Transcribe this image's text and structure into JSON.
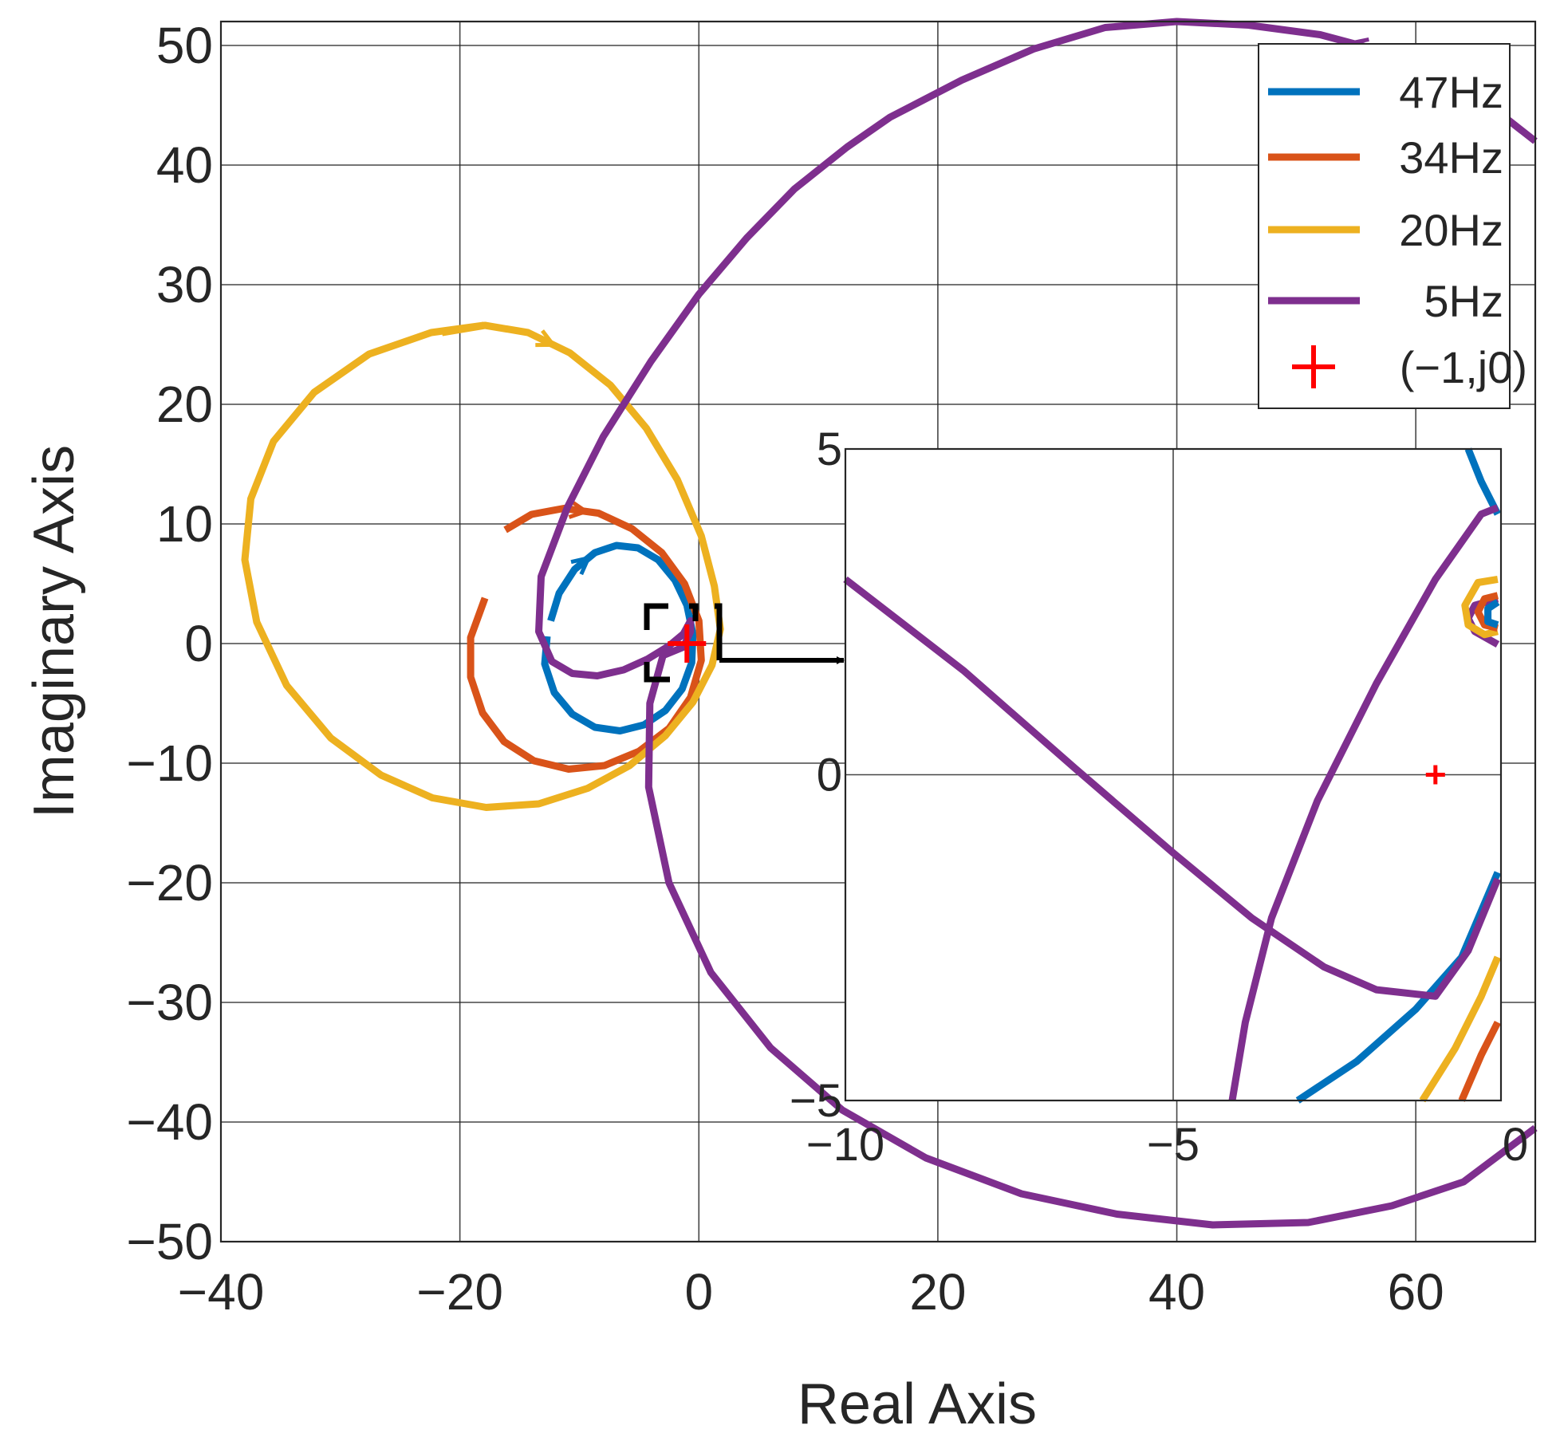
{
  "chart_data": {
    "type": "line",
    "title": "",
    "xlabel": "Real Axis",
    "ylabel": "Imaginary Axis",
    "xlim": [
      -40,
      70
    ],
    "ylim": [
      -50,
      52
    ],
    "xticks": [
      -40,
      -20,
      0,
      20,
      40,
      60
    ],
    "yticks": [
      -50,
      -40,
      -30,
      -20,
      -10,
      0,
      10,
      20,
      30,
      40,
      50
    ],
    "grid": true,
    "legend_position": "top-right",
    "series": [
      {
        "name": "47Hz",
        "color": "#0072BD",
        "x": [
          -12.4,
          -11.7,
          -10.4,
          -8.7,
          -6.9,
          -5.1,
          -3.4,
          -2.0,
          -1.0,
          -0.5,
          -0.6,
          -1.4,
          -2.8,
          -4.6,
          -6.6,
          -8.7,
          -10.6,
          -12.1,
          -12.9,
          -12.7
        ],
        "y": [
          1.9,
          4.2,
          6.2,
          7.6,
          8.2,
          8.0,
          7.0,
          5.3,
          3.2,
          0.8,
          -1.6,
          -3.8,
          -5.6,
          -6.8,
          -7.3,
          -7.0,
          -5.9,
          -4.1,
          -1.7,
          0.6
        ]
      },
      {
        "name": "34Hz",
        "color": "#D95319",
        "x": [
          -16.2,
          -14.0,
          -11.3,
          -8.4,
          -5.6,
          -3.1,
          -1.2,
          0.0,
          0.2,
          -0.7,
          -2.5,
          -5.0,
          -7.9,
          -10.9,
          -13.8,
          -16.3,
          -18.1,
          -19.1,
          -19.1,
          -17.9
        ],
        "y": [
          9.5,
          10.8,
          11.3,
          10.9,
          9.6,
          7.6,
          5.0,
          1.9,
          -1.4,
          -4.5,
          -7.1,
          -9.0,
          -10.2,
          -10.5,
          -9.8,
          -8.2,
          -5.8,
          -2.8,
          0.5,
          3.8
        ]
      },
      {
        "name": "20Hz",
        "color": "#EDB120",
        "x": [
          -21.5,
          -17.9,
          -14.3,
          -10.8,
          -7.4,
          -4.4,
          -1.8,
          0.2,
          1.3,
          1.8,
          1.1,
          -0.5,
          -2.8,
          -5.8,
          -9.3,
          -13.4,
          -17.8,
          -22.3,
          -26.6,
          -30.8,
          -34.5,
          -37.0,
          -38.0,
          -37.5,
          -35.6,
          -32.2,
          -27.6,
          -22.4,
          -18.0
        ],
        "y": [
          26.0,
          26.6,
          26.0,
          24.3,
          21.6,
          18.0,
          13.7,
          9.0,
          4.8,
          1.2,
          -1.8,
          -4.9,
          -7.7,
          -10.2,
          -12.1,
          -13.4,
          -13.7,
          -12.9,
          -11.0,
          -7.9,
          -3.5,
          1.8,
          7.0,
          12.1,
          16.9,
          21.0,
          24.2,
          26.0,
          26.6
        ]
      },
      {
        "name": "5Hz",
        "color": "#7E2F8E",
        "x": [
          70,
          64,
          58,
          52,
          46,
          40,
          34,
          28,
          22,
          16,
          12.4,
          8,
          4,
          0,
          -4,
          -8,
          -11,
          -13.2,
          -13.4,
          -12.3,
          -10.6,
          -8.5,
          -6.3,
          -4.3,
          -2.5,
          -1.3,
          -0.7,
          -0.7,
          -1.3,
          -3.0,
          -4.1,
          -4.2,
          -2.5,
          1,
          6,
          12,
          19,
          27,
          35,
          43,
          51,
          58,
          64,
          70
        ],
        "y": [
          42.0,
          46.7,
          49.3,
          50.9,
          51.7,
          52.0,
          51.5,
          49.7,
          47.1,
          44.0,
          41.5,
          38.0,
          33.9,
          29.2,
          23.6,
          17.3,
          11.4,
          5.6,
          1.0,
          -1.5,
          -2.5,
          -2.7,
          -2.2,
          -1.3,
          -0.2,
          0.8,
          1.9,
          1.0,
          -0.3,
          -1.0,
          -5.0,
          -12.0,
          -20.0,
          -27.5,
          -33.8,
          -39.0,
          -43.0,
          -46.0,
          -47.7,
          -48.6,
          -48.4,
          -47.0,
          -45.0,
          -40.5
        ]
      }
    ],
    "marker": {
      "name": "(−1,j0)",
      "x": -1,
      "y": 0,
      "color": "#FF0000"
    },
    "inset": {
      "xlim": [
        -10,
        0
      ],
      "ylim": [
        -5,
        5
      ],
      "xticks": [
        -10,
        -5,
        0
      ],
      "yticks": [
        -5,
        0,
        5
      ],
      "tick_labels_x": [
        "−10",
        "−5",
        "0"
      ],
      "tick_labels_y": [
        "−5",
        "0",
        "5"
      ],
      "series": [
        {
          "name": "47Hz",
          "color": "#0072BD",
          "x": [
            -0.5,
            -0.3,
            -0.05
          ],
          "y": [
            5.0,
            4.5,
            4.0
          ]
        },
        {
          "name": "47Hz",
          "color": "#0072BD",
          "x": [
            -3.1,
            -2.2,
            -1.3,
            -0.6,
            -0.05
          ],
          "y": [
            -5.0,
            -4.4,
            -3.6,
            -2.8,
            -1.5
          ]
        },
        {
          "name": "20Hz",
          "color": "#EDB120",
          "x": [
            -1.2,
            -0.7,
            -0.3,
            -0.05
          ],
          "y": [
            -5.0,
            -4.2,
            -3.4,
            -2.8
          ]
        },
        {
          "name": "34Hz",
          "color": "#D95319",
          "x": [
            -0.6,
            -0.3,
            -0.05
          ],
          "y": [
            -5.0,
            -4.3,
            -3.8
          ]
        },
        {
          "name": "5Hz",
          "color": "#7E2F8E",
          "x": [
            -10,
            -8.2,
            -6.5,
            -5.0,
            -3.8,
            -2.7,
            -1.9,
            -1.0,
            -0.5,
            -0.05
          ],
          "y": [
            3.0,
            1.6,
            0.1,
            -1.2,
            -2.2,
            -2.95,
            -3.3,
            -3.4,
            -2.7,
            -1.6
          ]
        },
        {
          "name": "5Hz",
          "color": "#7E2F8E",
          "x": [
            -4.1,
            -3.9,
            -3.5,
            -2.8,
            -1.9,
            -1.0,
            -0.3,
            -0.05
          ],
          "y": [
            -5.0,
            -3.8,
            -2.2,
            -0.4,
            1.4,
            3.0,
            4.0,
            4.1
          ]
        },
        {
          "name": "5Hz",
          "color": "#7E2F8E",
          "x": [
            -0.05,
            -0.4,
            -0.5,
            -0.4,
            -0.05
          ],
          "y": [
            2.0,
            2.2,
            2.4,
            2.6,
            2.7
          ]
        },
        {
          "name": "20Hz",
          "color": "#EDB120",
          "x": [
            -0.05,
            -0.35,
            -0.55,
            -0.5,
            -0.25,
            -0.05
          ],
          "y": [
            3.0,
            2.95,
            2.6,
            2.3,
            2.15,
            2.2
          ]
        },
        {
          "name": "34Hz",
          "color": "#D95319",
          "x": [
            -0.05,
            -0.25,
            -0.35,
            -0.25,
            -0.05
          ],
          "y": [
            2.75,
            2.7,
            2.5,
            2.3,
            2.25
          ]
        },
        {
          "name": "47Hz",
          "color": "#0072BD",
          "x": [
            -0.05,
            -0.2,
            -0.2,
            -0.05
          ],
          "y": [
            2.65,
            2.55,
            2.35,
            2.3
          ]
        }
      ],
      "marker": {
        "x": -1,
        "y": 0
      }
    }
  }
}
